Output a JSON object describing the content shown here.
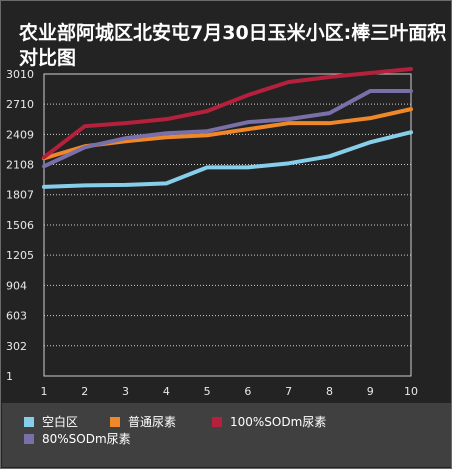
{
  "chart_data": {
    "type": "line",
    "title": "农业部阿城区北安屯7月30日玉米小区:棒三叶面积对比图",
    "xlabel": "",
    "ylabel": "",
    "x": [
      1,
      2,
      3,
      4,
      5,
      6,
      7,
      8,
      9,
      10
    ],
    "x_tick_labels": [
      "1",
      "2",
      "3",
      "4",
      "5",
      "6",
      "7",
      "8",
      "9",
      "10"
    ],
    "y_tick_labels": [
      "1",
      "302",
      "603",
      "904",
      "1205",
      "1506",
      "1807",
      "2108",
      "2409",
      "2710",
      "3010"
    ],
    "ylim": [
      1,
      3010
    ],
    "grid": true,
    "legend_position": "bottom",
    "series": [
      {
        "name": "空白区",
        "color": "#87CEEB",
        "values": [
          1885,
          1900,
          1905,
          1920,
          2080,
          2080,
          2120,
          2190,
          2330,
          2430
        ]
      },
      {
        "name": "普通尿素",
        "color": "#F0882A",
        "values": [
          2170,
          2290,
          2340,
          2380,
          2400,
          2460,
          2520,
          2520,
          2570,
          2660
        ]
      },
      {
        "name": "100%SODm尿素",
        "color": "#B5213C",
        "values": [
          2180,
          2490,
          2520,
          2560,
          2640,
          2800,
          2930,
          2980,
          3020,
          3060
        ]
      },
      {
        "name": "80%SODm尿素",
        "color": "#7A6FA8",
        "values": [
          2090,
          2280,
          2370,
          2420,
          2440,
          2530,
          2560,
          2620,
          2840,
          2840
        ]
      }
    ]
  }
}
